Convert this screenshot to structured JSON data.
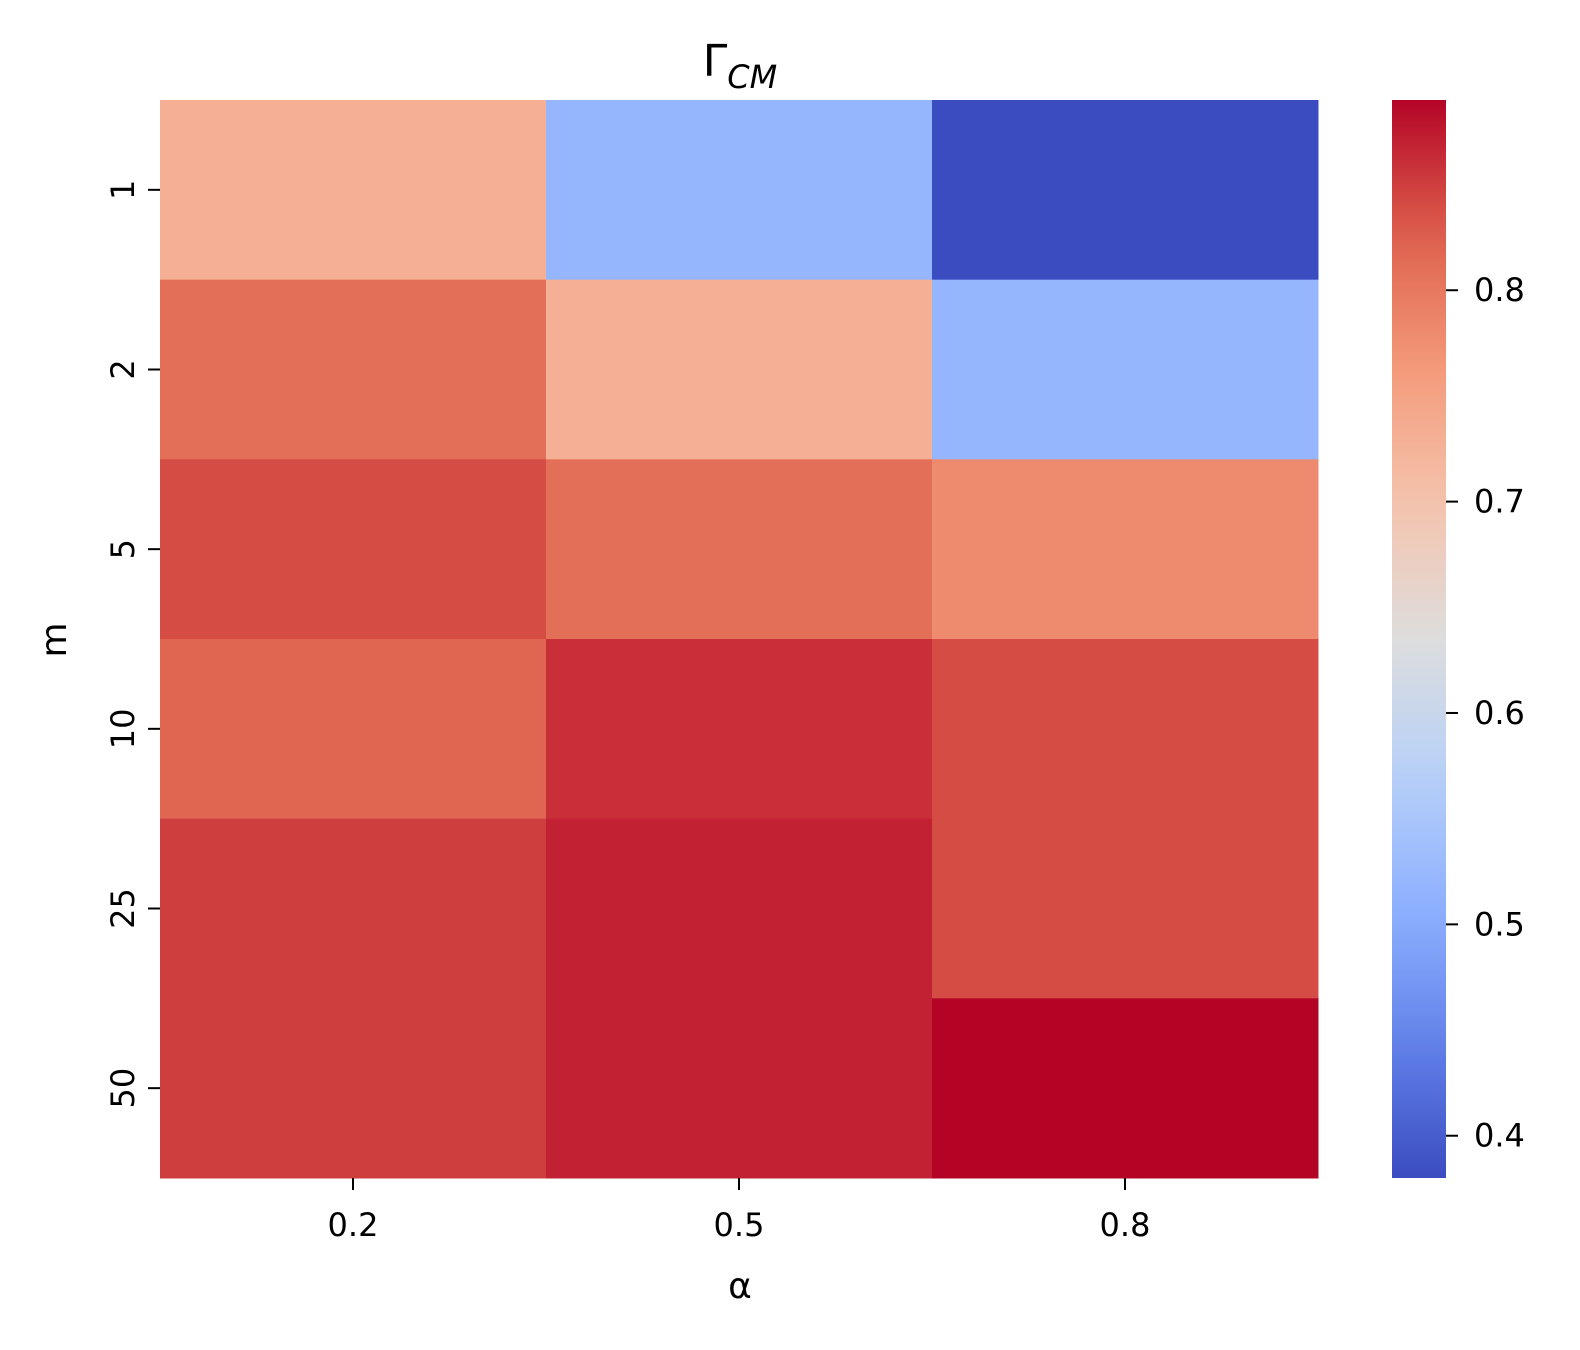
{
  "chart_data": {
    "type": "heatmap",
    "title": {
      "base": "Γ",
      "subscript": "CM"
    },
    "xlabel": "α",
    "ylabel": "m",
    "x_categories": [
      "0.2",
      "0.5",
      "0.8"
    ],
    "y_categories": [
      "1",
      "2",
      "5",
      "10",
      "25",
      "50"
    ],
    "values": [
      [
        0.73,
        0.52,
        0.38
      ],
      [
        0.81,
        0.73,
        0.52
      ],
      [
        0.84,
        0.81,
        0.78
      ],
      [
        0.82,
        0.86,
        0.84
      ],
      [
        0.85,
        0.87,
        0.84
      ],
      [
        0.85,
        0.87,
        0.89
      ]
    ],
    "colormap": "coolwarm",
    "color_range": [
      0.38,
      0.89
    ],
    "colorbar": {
      "ticks": [
        0.4,
        0.5,
        0.6,
        0.7,
        0.8
      ],
      "tick_labels": [
        "0.4",
        "0.5",
        "0.6",
        "0.7",
        "0.8"
      ]
    },
    "grid": false,
    "colorbar_placement": "right"
  }
}
